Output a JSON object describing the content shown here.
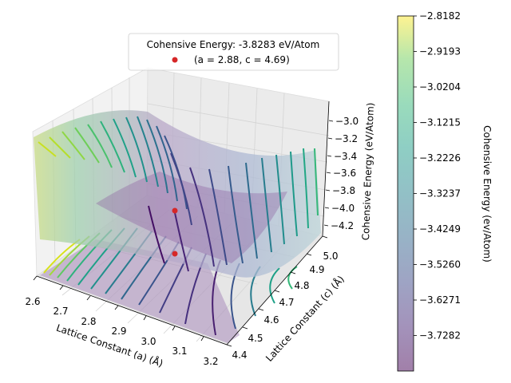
{
  "chart_data": [
    {
      "type": "surface3d",
      "legend": {
        "title": "Cohensive Energy: -3.8283 eV/Atom",
        "entries": [
          {
            "label": "(a = 2.88, c = 4.69)",
            "color": "#d62728",
            "marker": "circle"
          }
        ]
      },
      "colormap": "viridis",
      "x_axis": {
        "label": "Lattice Constant (a) (Å)",
        "range": [
          2.6,
          3.2
        ],
        "ticks": [
          "2.6",
          "2.7",
          "2.8",
          "2.9",
          "3.0",
          "3.1",
          "3.2"
        ]
      },
      "y_axis": {
        "label": "Lattice Constant (c) (Å)",
        "range": [
          4.4,
          5.0
        ],
        "ticks": [
          "4.4",
          "4.5",
          "4.6",
          "4.7",
          "4.8",
          "4.9",
          "5.0"
        ]
      },
      "z_axis": {
        "label": "Cohensive Energy (eV/Atom)",
        "label_italic_part": "eV/Atom",
        "range": [
          -4.3,
          -2.82
        ],
        "ticks": [
          "−4.2",
          "−4.0",
          "−3.8",
          "−3.6",
          "−3.4",
          "−3.2",
          "−3.0"
        ]
      },
      "surface": {
        "description": "paraboloid energy surface with contour lines projected on floor",
        "min_point": {
          "a": 2.88,
          "c": 4.69,
          "energy": -3.8283
        }
      },
      "markers": [
        {
          "a": 2.88,
          "c": 4.69,
          "energy": -3.8283,
          "where": "surface"
        },
        {
          "a": 2.88,
          "c": 4.69,
          "energy": -4.3,
          "where": "floor"
        }
      ]
    },
    {
      "type": "colorbar",
      "label": "Cohensive Energy (ev/Atom)",
      "label_italic_part": "ev/Atom",
      "range": [
        -3.8293,
        -2.8182
      ],
      "ticks": [
        "−2.8182",
        "−2.9193",
        "−3.0204",
        "−3.1215",
        "−3.2226",
        "−3.3237",
        "−3.4249",
        "−3.5260",
        "−3.6271",
        "−3.7282"
      ],
      "tick_values": [
        -2.8182,
        -2.9193,
        -3.0204,
        -3.1215,
        -3.2226,
        -3.3237,
        -3.4249,
        -3.526,
        -3.6271,
        -3.7282
      ],
      "alpha": 0.5
    }
  ]
}
